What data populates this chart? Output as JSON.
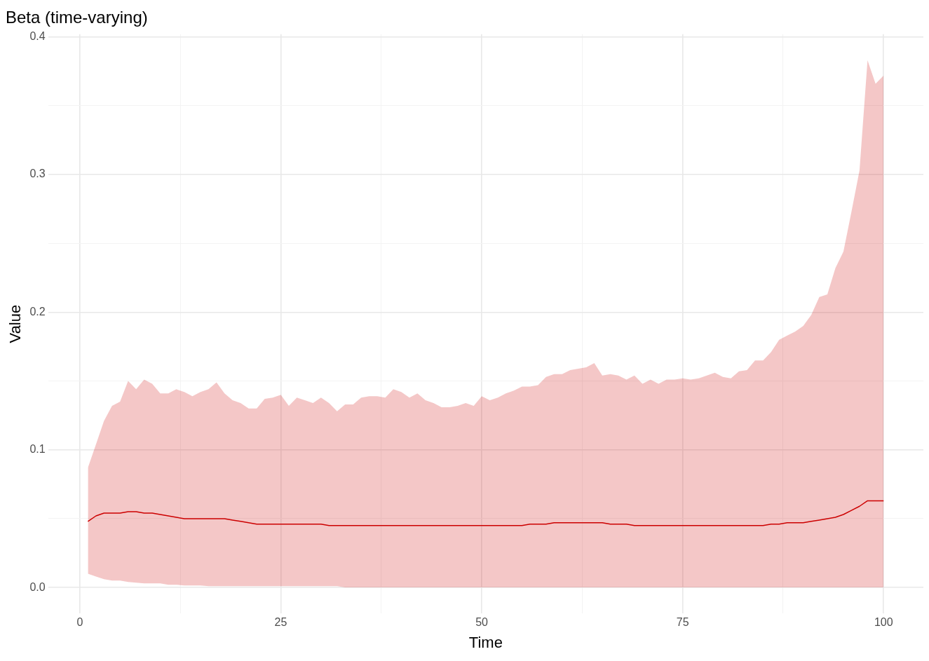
{
  "chart_data": {
    "type": "line",
    "title": "Beta (time-varying)",
    "xlabel": "Time",
    "ylabel": "Value",
    "x": [
      1,
      2,
      3,
      4,
      5,
      6,
      7,
      8,
      9,
      10,
      11,
      12,
      13,
      14,
      15,
      16,
      17,
      18,
      19,
      20,
      21,
      22,
      23,
      24,
      25,
      26,
      27,
      28,
      29,
      30,
      31,
      32,
      33,
      34,
      35,
      36,
      37,
      38,
      39,
      40,
      41,
      42,
      43,
      44,
      45,
      46,
      47,
      48,
      49,
      50,
      51,
      52,
      53,
      54,
      55,
      56,
      57,
      58,
      59,
      60,
      61,
      62,
      63,
      64,
      65,
      66,
      67,
      68,
      69,
      70,
      71,
      72,
      73,
      74,
      75,
      76,
      77,
      78,
      79,
      80,
      81,
      82,
      83,
      84,
      85,
      86,
      87,
      88,
      89,
      90,
      91,
      92,
      93,
      94,
      95,
      96,
      97,
      98,
      99,
      100
    ],
    "series": [
      {
        "color": "#cc0000",
        "values": [
          0.048,
          0.052,
          0.054,
          0.054,
          0.054,
          0.055,
          0.055,
          0.054,
          0.054,
          0.053,
          0.052,
          0.051,
          0.05,
          0.05,
          0.05,
          0.05,
          0.05,
          0.05,
          0.049,
          0.048,
          0.047,
          0.046,
          0.046,
          0.046,
          0.046,
          0.046,
          0.046,
          0.046,
          0.046,
          0.046,
          0.045,
          0.045,
          0.045,
          0.045,
          0.045,
          0.045,
          0.045,
          0.045,
          0.045,
          0.045,
          0.045,
          0.045,
          0.045,
          0.045,
          0.045,
          0.045,
          0.045,
          0.045,
          0.045,
          0.045,
          0.045,
          0.045,
          0.045,
          0.045,
          0.045,
          0.046,
          0.046,
          0.046,
          0.047,
          0.047,
          0.047,
          0.047,
          0.047,
          0.047,
          0.047,
          0.046,
          0.046,
          0.046,
          0.045,
          0.045,
          0.045,
          0.045,
          0.045,
          0.045,
          0.045,
          0.045,
          0.045,
          0.045,
          0.045,
          0.045,
          0.045,
          0.045,
          0.045,
          0.045,
          0.045,
          0.046,
          0.046,
          0.047,
          0.047,
          0.047,
          0.048,
          0.049,
          0.05,
          0.051,
          0.053,
          0.056,
          0.059,
          0.063,
          0.063,
          0.063
        ],
        "lower": [
          0.01,
          0.008,
          0.006,
          0.005,
          0.005,
          0.004,
          0.0035,
          0.003,
          0.003,
          0.003,
          0.002,
          0.002,
          0.0015,
          0.0015,
          0.0015,
          0.001,
          0.001,
          0.001,
          0.001,
          0.001,
          0.001,
          0.001,
          0.001,
          0.001,
          0.001,
          0.001,
          0.001,
          0.001,
          0.001,
          0.001,
          0.001,
          0.001,
          0,
          0,
          0,
          0,
          0,
          0,
          0,
          0,
          0,
          0,
          0,
          0,
          0,
          0,
          0,
          0,
          0,
          0,
          0,
          0,
          0,
          0,
          0,
          0,
          0,
          0,
          0,
          0,
          0,
          0,
          0,
          0,
          0,
          0,
          0,
          0,
          0,
          0,
          0,
          0,
          0,
          0,
          0,
          0,
          0,
          0,
          0,
          0,
          0,
          0,
          0,
          0,
          0,
          0,
          0,
          0,
          0,
          0,
          0,
          0,
          0,
          0,
          0,
          0,
          0,
          0,
          0,
          0
        ],
        "upper": [
          0.087,
          0.104,
          0.121,
          0.132,
          0.135,
          0.15,
          0.144,
          0.151,
          0.148,
          0.141,
          0.141,
          0.144,
          0.142,
          0.139,
          0.142,
          0.144,
          0.149,
          0.141,
          0.136,
          0.134,
          0.13,
          0.13,
          0.137,
          0.138,
          0.14,
          0.132,
          0.138,
          0.136,
          0.134,
          0.138,
          0.134,
          0.128,
          0.133,
          0.133,
          0.138,
          0.139,
          0.139,
          0.138,
          0.144,
          0.142,
          0.138,
          0.141,
          0.136,
          0.134,
          0.131,
          0.131,
          0.132,
          0.134,
          0.132,
          0.139,
          0.136,
          0.138,
          0.141,
          0.143,
          0.146,
          0.146,
          0.147,
          0.153,
          0.155,
          0.155,
          0.158,
          0.159,
          0.16,
          0.163,
          0.154,
          0.155,
          0.154,
          0.151,
          0.154,
          0.148,
          0.151,
          0.148,
          0.151,
          0.151,
          0.152,
          0.151,
          0.152,
          0.154,
          0.156,
          0.153,
          0.152,
          0.157,
          0.158,
          0.165,
          0.165,
          0.171,
          0.18,
          0.183,
          0.186,
          0.19,
          0.198,
          0.211,
          0.213,
          0.232,
          0.244,
          0.273,
          0.303,
          0.383,
          0.366,
          0.372
        ]
      }
    ],
    "xlim": [
      -3.95,
      104.95
    ],
    "ylim": [
      -0.019,
      0.402
    ],
    "xticks": [
      0,
      {
        "value": 12.5,
        "label": null
      },
      25,
      {
        "value": 37.5,
        "label": null
      },
      50,
      {
        "value": 62.5,
        "label": null
      },
      75,
      {
        "value": 87.5,
        "label": null
      },
      100
    ],
    "yticks": [
      {
        "value": 0,
        "label": "0.0"
      },
      {
        "value": 0.05,
        "label": null
      },
      0.1,
      {
        "value": 0.15,
        "label": null
      },
      0.2,
      {
        "value": 0.25,
        "label": null
      },
      0.3,
      {
        "value": 0.35,
        "label": null
      },
      0.4
    ],
    "grid": true,
    "legend": false,
    "line_style": "solid",
    "marker": "none"
  }
}
